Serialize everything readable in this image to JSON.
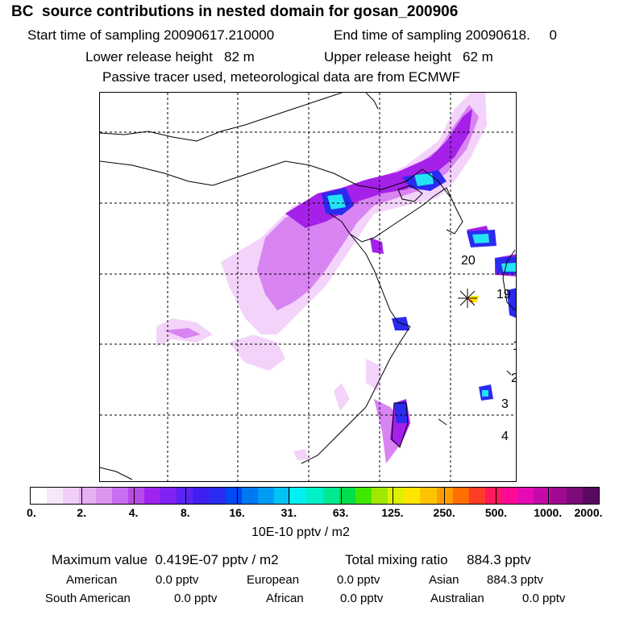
{
  "header": {
    "title": "BC  source contributions in nested domain for gosan_200906",
    "start_sampling": "Start time of sampling 20090617.210000",
    "end_sampling": "End time of sampling 20090618.     0",
    "lower_release": "Lower release height   82 m",
    "upper_release": "Upper release height   62 m",
    "tracer_note": "Passive tracer used, meteorological data are from ECMWF"
  },
  "map": {
    "region_labels": [
      "20",
      "19",
      "1",
      "2",
      "3",
      "4"
    ],
    "receptor_marker": "star-marker",
    "plume_colors": {
      "light": "#f0c8f8",
      "mid": "#d77af0",
      "purple": "#a21ee8",
      "blue": "#2a2af2",
      "cyan": "#22e8f5"
    }
  },
  "colorbar": {
    "colors": [
      "#ffffff",
      "#f8e6fa",
      "#f0cef6",
      "#e6b0f2",
      "#dc96ee",
      "#c86ef0",
      "#b84ae8",
      "#a024f0",
      "#7d22f2",
      "#5b24f0",
      "#3d20f0",
      "#2a2cf2",
      "#0048f2",
      "#0078f0",
      "#009cf4",
      "#00c4f4",
      "#00f0f0",
      "#00f0c8",
      "#00e890",
      "#00dc4c",
      "#40e800",
      "#a0e800",
      "#dcf000",
      "#ffe600",
      "#ffc400",
      "#ff9c00",
      "#ff6e00",
      "#ff3c28",
      "#ff1a5a",
      "#ff0a96",
      "#e60ab4",
      "#c40aa8",
      "#a00a90",
      "#7c0a78",
      "#5a0a5e"
    ],
    "tick_labels": [
      "0.",
      "2.",
      "4.",
      "8.",
      "16.",
      "31.",
      "63.",
      "125.",
      "250.",
      "500.",
      "1000.",
      "2000."
    ],
    "units": "10E-10 pptv / m2"
  },
  "summary": {
    "maximum_value": "Maximum value  0.419E-07 pptv / m2",
    "total_mixing_ratio": "Total mixing ratio     884.3 pptv",
    "regions": [
      {
        "name": "American",
        "value": "0.0 pptv"
      },
      {
        "name": "European",
        "value": "0.0 pptv"
      },
      {
        "name": "Asian",
        "value": "884.3 pptv"
      },
      {
        "name": "South American",
        "value": "0.0 pptv"
      },
      {
        "name": "African",
        "value": "0.0 pptv"
      },
      {
        "name": "Australian",
        "value": "0.0 pptv"
      }
    ]
  }
}
